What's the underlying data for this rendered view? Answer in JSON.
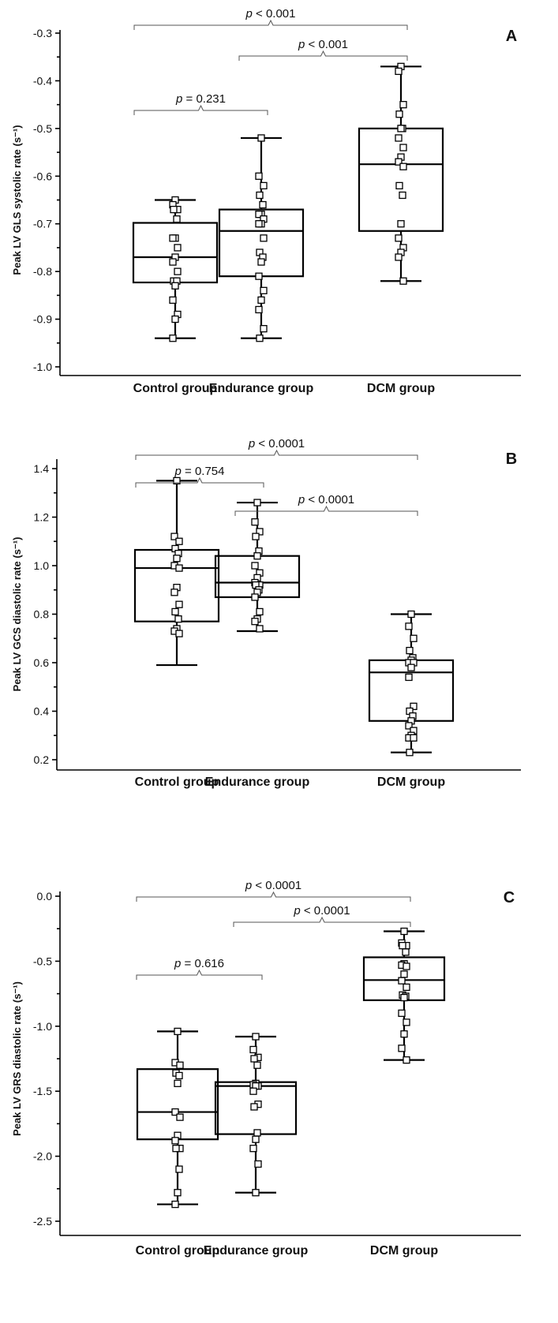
{
  "chart_data": [
    {
      "type": "box",
      "panel_label": "A",
      "ylabel": "Peak LV GLS systolic rate (s⁻¹)",
      "ylim": [
        -1.0,
        -0.3
      ],
      "yticks": [
        -0.3,
        -0.4,
        -0.5,
        -0.6,
        -0.7,
        -0.8,
        -0.9,
        -1.0
      ],
      "ytick_labels": [
        "-0.3",
        "-0.4",
        "-0.5",
        "-0.6",
        "-0.7",
        "-0.8",
        "-0.9",
        "-1.0"
      ],
      "categories": [
        "Control group",
        "Endurance group",
        "DCM group"
      ],
      "boxes": [
        {
          "min": -0.94,
          "q1": -0.823,
          "median": -0.77,
          "q3": -0.698,
          "max": -0.65,
          "points": [
            -0.65,
            -0.66,
            -0.67,
            -0.67,
            -0.69,
            -0.73,
            -0.73,
            -0.75,
            -0.77,
            -0.78,
            -0.8,
            -0.82,
            -0.82,
            -0.83,
            -0.86,
            -0.89,
            -0.9,
            -0.94
          ]
        },
        {
          "min": -0.94,
          "q1": -0.81,
          "median": -0.715,
          "q3": -0.67,
          "max": -0.52,
          "points": [
            -0.52,
            -0.6,
            -0.62,
            -0.64,
            -0.66,
            -0.68,
            -0.68,
            -0.69,
            -0.7,
            -0.7,
            -0.73,
            -0.76,
            -0.77,
            -0.78,
            -0.81,
            -0.84,
            -0.86,
            -0.88,
            -0.92,
            -0.94
          ]
        },
        {
          "min": -0.82,
          "q1": -0.715,
          "median": -0.575,
          "q3": -0.5,
          "max": -0.37,
          "points": [
            -0.37,
            -0.38,
            -0.45,
            -0.47,
            -0.5,
            -0.5,
            -0.52,
            -0.54,
            -0.56,
            -0.57,
            -0.58,
            -0.62,
            -0.64,
            -0.7,
            -0.73,
            -0.75,
            -0.76,
            -0.77,
            -0.82
          ]
        }
      ],
      "comparisons": [
        {
          "label_italic": "p",
          "label_rest": " < 0.001",
          "from": 0,
          "to": 2
        },
        {
          "label_italic": "p",
          "label_rest": " < 0.001",
          "from": 1,
          "to": 2
        },
        {
          "label_italic": "p",
          "label_rest": " = 0.231",
          "from": 0,
          "to": 1
        }
      ]
    },
    {
      "type": "box",
      "panel_label": "B",
      "ylabel": "Peak LV GCS diastolic rate (s⁻¹)",
      "ylim": [
        0.2,
        1.4
      ],
      "yticks": [
        1.4,
        1.2,
        1.0,
        0.8,
        0.6,
        0.4,
        0.2
      ],
      "ytick_labels": [
        "1.4",
        "1.2",
        "1.0",
        "0.8",
        "0.6",
        "0.4",
        "0.2"
      ],
      "categories": [
        "Control group",
        "Endurance group",
        "DCM group"
      ],
      "boxes": [
        {
          "min": 0.59,
          "q1": 0.77,
          "median": 0.99,
          "q3": 1.065,
          "max": 1.35,
          "points": [
            1.35,
            1.12,
            1.1,
            1.07,
            1.05,
            1.03,
            1.0,
            0.99,
            0.91,
            0.89,
            0.84,
            0.81,
            0.78,
            0.74,
            0.73,
            0.72
          ]
        },
        {
          "min": 0.73,
          "q1": 0.87,
          "median": 0.93,
          "q3": 1.04,
          "max": 1.26,
          "points": [
            1.26,
            1.18,
            1.14,
            1.12,
            1.06,
            1.04,
            1.0,
            0.97,
            0.95,
            0.93,
            0.92,
            0.92,
            0.9,
            0.89,
            0.87,
            0.81,
            0.78,
            0.77,
            0.74
          ]
        },
        {
          "min": 0.23,
          "q1": 0.36,
          "median": 0.56,
          "q3": 0.61,
          "max": 0.8,
          "points": [
            0.8,
            0.75,
            0.7,
            0.65,
            0.62,
            0.61,
            0.6,
            0.6,
            0.58,
            0.54,
            0.42,
            0.4,
            0.38,
            0.36,
            0.34,
            0.32,
            0.3,
            0.29,
            0.29,
            0.23
          ]
        }
      ],
      "comparisons": [
        {
          "label_italic": "p",
          "label_rest": " < 0.0001",
          "from": 0,
          "to": 2
        },
        {
          "label_italic": "p",
          "label_rest": " = 0.754",
          "from": 0,
          "to": 1
        },
        {
          "label_italic": "p",
          "label_rest": " < 0.0001",
          "from": 1,
          "to": 2
        }
      ]
    },
    {
      "type": "box",
      "panel_label": "C",
      "ylabel": "Peak LV GRS diastolic rate (s⁻¹)",
      "ylim": [
        -2.5,
        0.0
      ],
      "yticks": [
        0.0,
        -0.5,
        -1.0,
        -1.5,
        -2.0,
        -2.5
      ],
      "ytick_labels": [
        "0.0",
        "-0.5",
        "-1.0",
        "-1.5",
        "-2.0",
        "-2.5"
      ],
      "categories": [
        "Control group",
        "Endurance group",
        "DCM group"
      ],
      "boxes": [
        {
          "min": -2.37,
          "q1": -1.87,
          "median": -1.66,
          "q3": -1.33,
          "max": -1.04,
          "points": [
            -1.04,
            -1.28,
            -1.3,
            -1.36,
            -1.38,
            -1.44,
            -1.66,
            -1.7,
            -1.84,
            -1.88,
            -1.94,
            -1.94,
            -2.1,
            -2.28,
            -2.37
          ]
        },
        {
          "min": -2.28,
          "q1": -1.83,
          "median": -1.46,
          "q3": -1.43,
          "max": -1.08,
          "points": [
            -1.08,
            -1.18,
            -1.24,
            -1.25,
            -1.3,
            -1.44,
            -1.45,
            -1.46,
            -1.46,
            -1.5,
            -1.6,
            -1.62,
            -1.82,
            -1.87,
            -1.94,
            -2.06,
            -2.28
          ]
        },
        {
          "min": -1.26,
          "q1": -0.8,
          "median": -0.645,
          "q3": -0.47,
          "max": -0.27,
          "points": [
            -0.27,
            -0.36,
            -0.38,
            -0.38,
            -0.43,
            -0.52,
            -0.53,
            -0.54,
            -0.6,
            -0.65,
            -0.7,
            -0.76,
            -0.77,
            -0.78,
            -0.9,
            -0.97,
            -1.06,
            -1.17,
            -1.26
          ]
        }
      ],
      "comparisons": [
        {
          "label_italic": "p",
          "label_rest": " < 0.0001",
          "from": 0,
          "to": 2
        },
        {
          "label_italic": "p",
          "label_rest": " < 0.0001",
          "from": 1,
          "to": 2
        },
        {
          "label_italic": "p",
          "label_rest": " = 0.616",
          "from": 0,
          "to": 1
        }
      ]
    }
  ]
}
